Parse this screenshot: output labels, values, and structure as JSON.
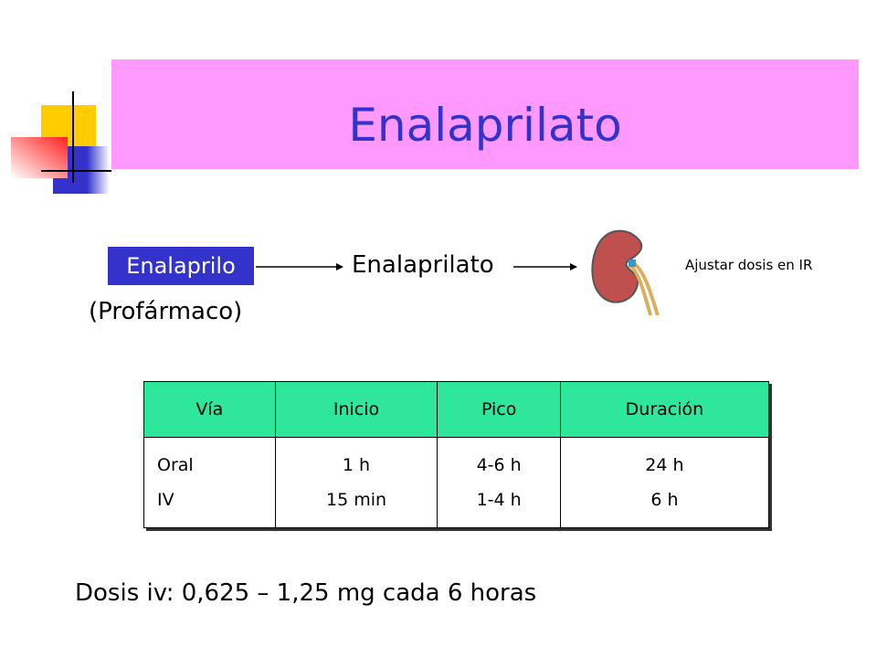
{
  "slide": {
    "title": "Enalaprilato",
    "flow": {
      "prodrug": "Enalaprilo",
      "prodrug_note": "(Profármaco)",
      "active": "Enalaprilato",
      "kidney_note": "Ajustar dosis en IR"
    },
    "table": {
      "header": [
        "Vía",
        "Inicio",
        "Pico",
        "Duración"
      ],
      "rows": [
        [
          [
            "Oral",
            "IV"
          ],
          [
            "1 h",
            "15 min"
          ],
          [
            "4-6 h",
            "1-4 h"
          ],
          [
            "24 h",
            "6 h"
          ]
        ]
      ]
    },
    "footer": "Dosis iv: 0,625 – 1,25 mg cada 6 horas"
  }
}
